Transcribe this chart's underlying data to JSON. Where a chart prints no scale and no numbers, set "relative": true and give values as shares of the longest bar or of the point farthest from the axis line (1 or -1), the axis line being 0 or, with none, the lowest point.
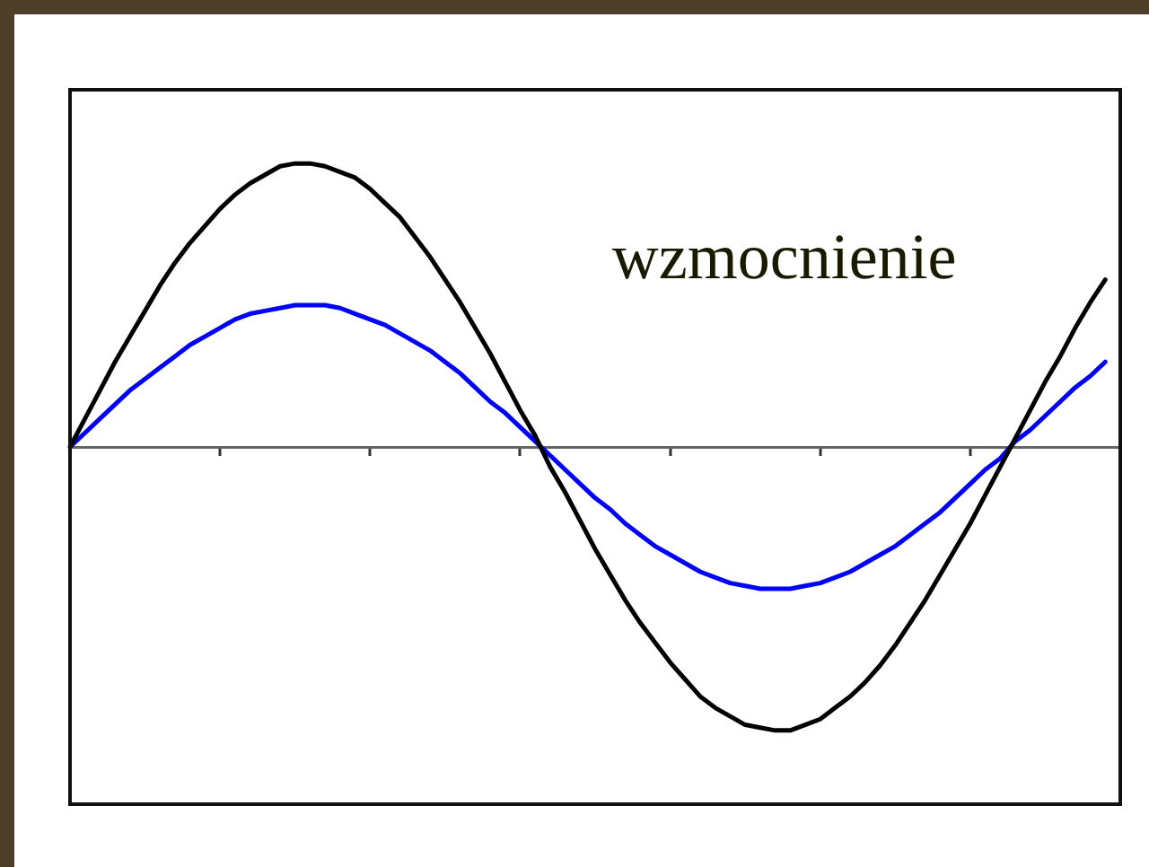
{
  "chart_data": {
    "type": "line",
    "relative": true,
    "annotations": [
      "wzmocnienie"
    ],
    "categories": [
      null,
      null,
      null,
      null,
      null,
      null,
      null,
      null,
      null,
      null,
      null,
      null,
      null,
      null,
      null,
      null,
      null,
      null,
      null,
      null,
      null,
      null,
      null,
      null,
      null,
      null,
      null,
      null,
      null,
      null,
      null,
      null,
      null,
      null,
      null,
      null,
      null,
      null,
      null,
      null,
      null,
      null,
      null,
      null,
      null,
      null,
      null,
      null,
      null,
      null,
      null,
      null,
      null,
      null,
      null,
      null,
      null,
      null,
      null,
      null,
      null,
      null,
      null,
      null,
      null,
      null,
      null,
      null,
      null,
      null,
      null
    ],
    "series": [
      {
        "color": "#000000",
        "values": [
          0,
          0.1,
          0.2,
          0.3,
          0.39,
          0.48,
          0.57,
          0.65,
          0.72,
          0.78,
          0.84,
          0.89,
          0.93,
          0.96,
          0.99,
          1.0,
          1.0,
          0.99,
          0.97,
          0.95,
          0.91,
          0.86,
          0.81,
          0.74,
          0.67,
          0.59,
          0.51,
          0.42,
          0.33,
          0.23,
          0.13,
          0.04,
          -0.07,
          -0.16,
          -0.26,
          -0.36,
          -0.45,
          -0.54,
          -0.62,
          -0.69,
          -0.76,
          -0.82,
          -0.88,
          -0.92,
          -0.95,
          -0.98,
          -0.99,
          -1.0,
          -1.0,
          -0.98,
          -0.96,
          -0.92,
          -0.88,
          -0.83,
          -0.77,
          -0.7,
          -0.62,
          -0.54,
          -0.45,
          -0.36,
          -0.27,
          -0.17,
          -0.07,
          0.03,
          0.13,
          0.23,
          0.32,
          0.42,
          0.51,
          0.59,
          null
        ]
      },
      {
        "color": "#0000ff",
        "values": [
          0,
          0.05,
          0.1,
          0.15,
          0.2,
          0.24,
          0.28,
          0.32,
          0.36,
          0.39,
          0.42,
          0.45,
          0.47,
          0.48,
          0.49,
          0.5,
          0.5,
          0.5,
          0.49,
          0.47,
          0.45,
          0.43,
          0.4,
          0.37,
          0.34,
          0.3,
          0.26,
          0.21,
          0.16,
          0.12,
          0.07,
          0.02,
          -0.03,
          -0.08,
          -0.13,
          -0.18,
          -0.22,
          -0.27,
          -0.31,
          -0.35,
          -0.38,
          -0.41,
          -0.44,
          -0.46,
          -0.48,
          -0.49,
          -0.5,
          -0.5,
          -0.5,
          -0.49,
          -0.48,
          -0.46,
          -0.44,
          -0.41,
          -0.38,
          -0.35,
          -0.31,
          -0.27,
          -0.23,
          -0.18,
          -0.13,
          -0.08,
          -0.04,
          0.02,
          0.06,
          0.11,
          0.16,
          0.21,
          0.25,
          0.3,
          null
        ]
      }
    ]
  }
}
